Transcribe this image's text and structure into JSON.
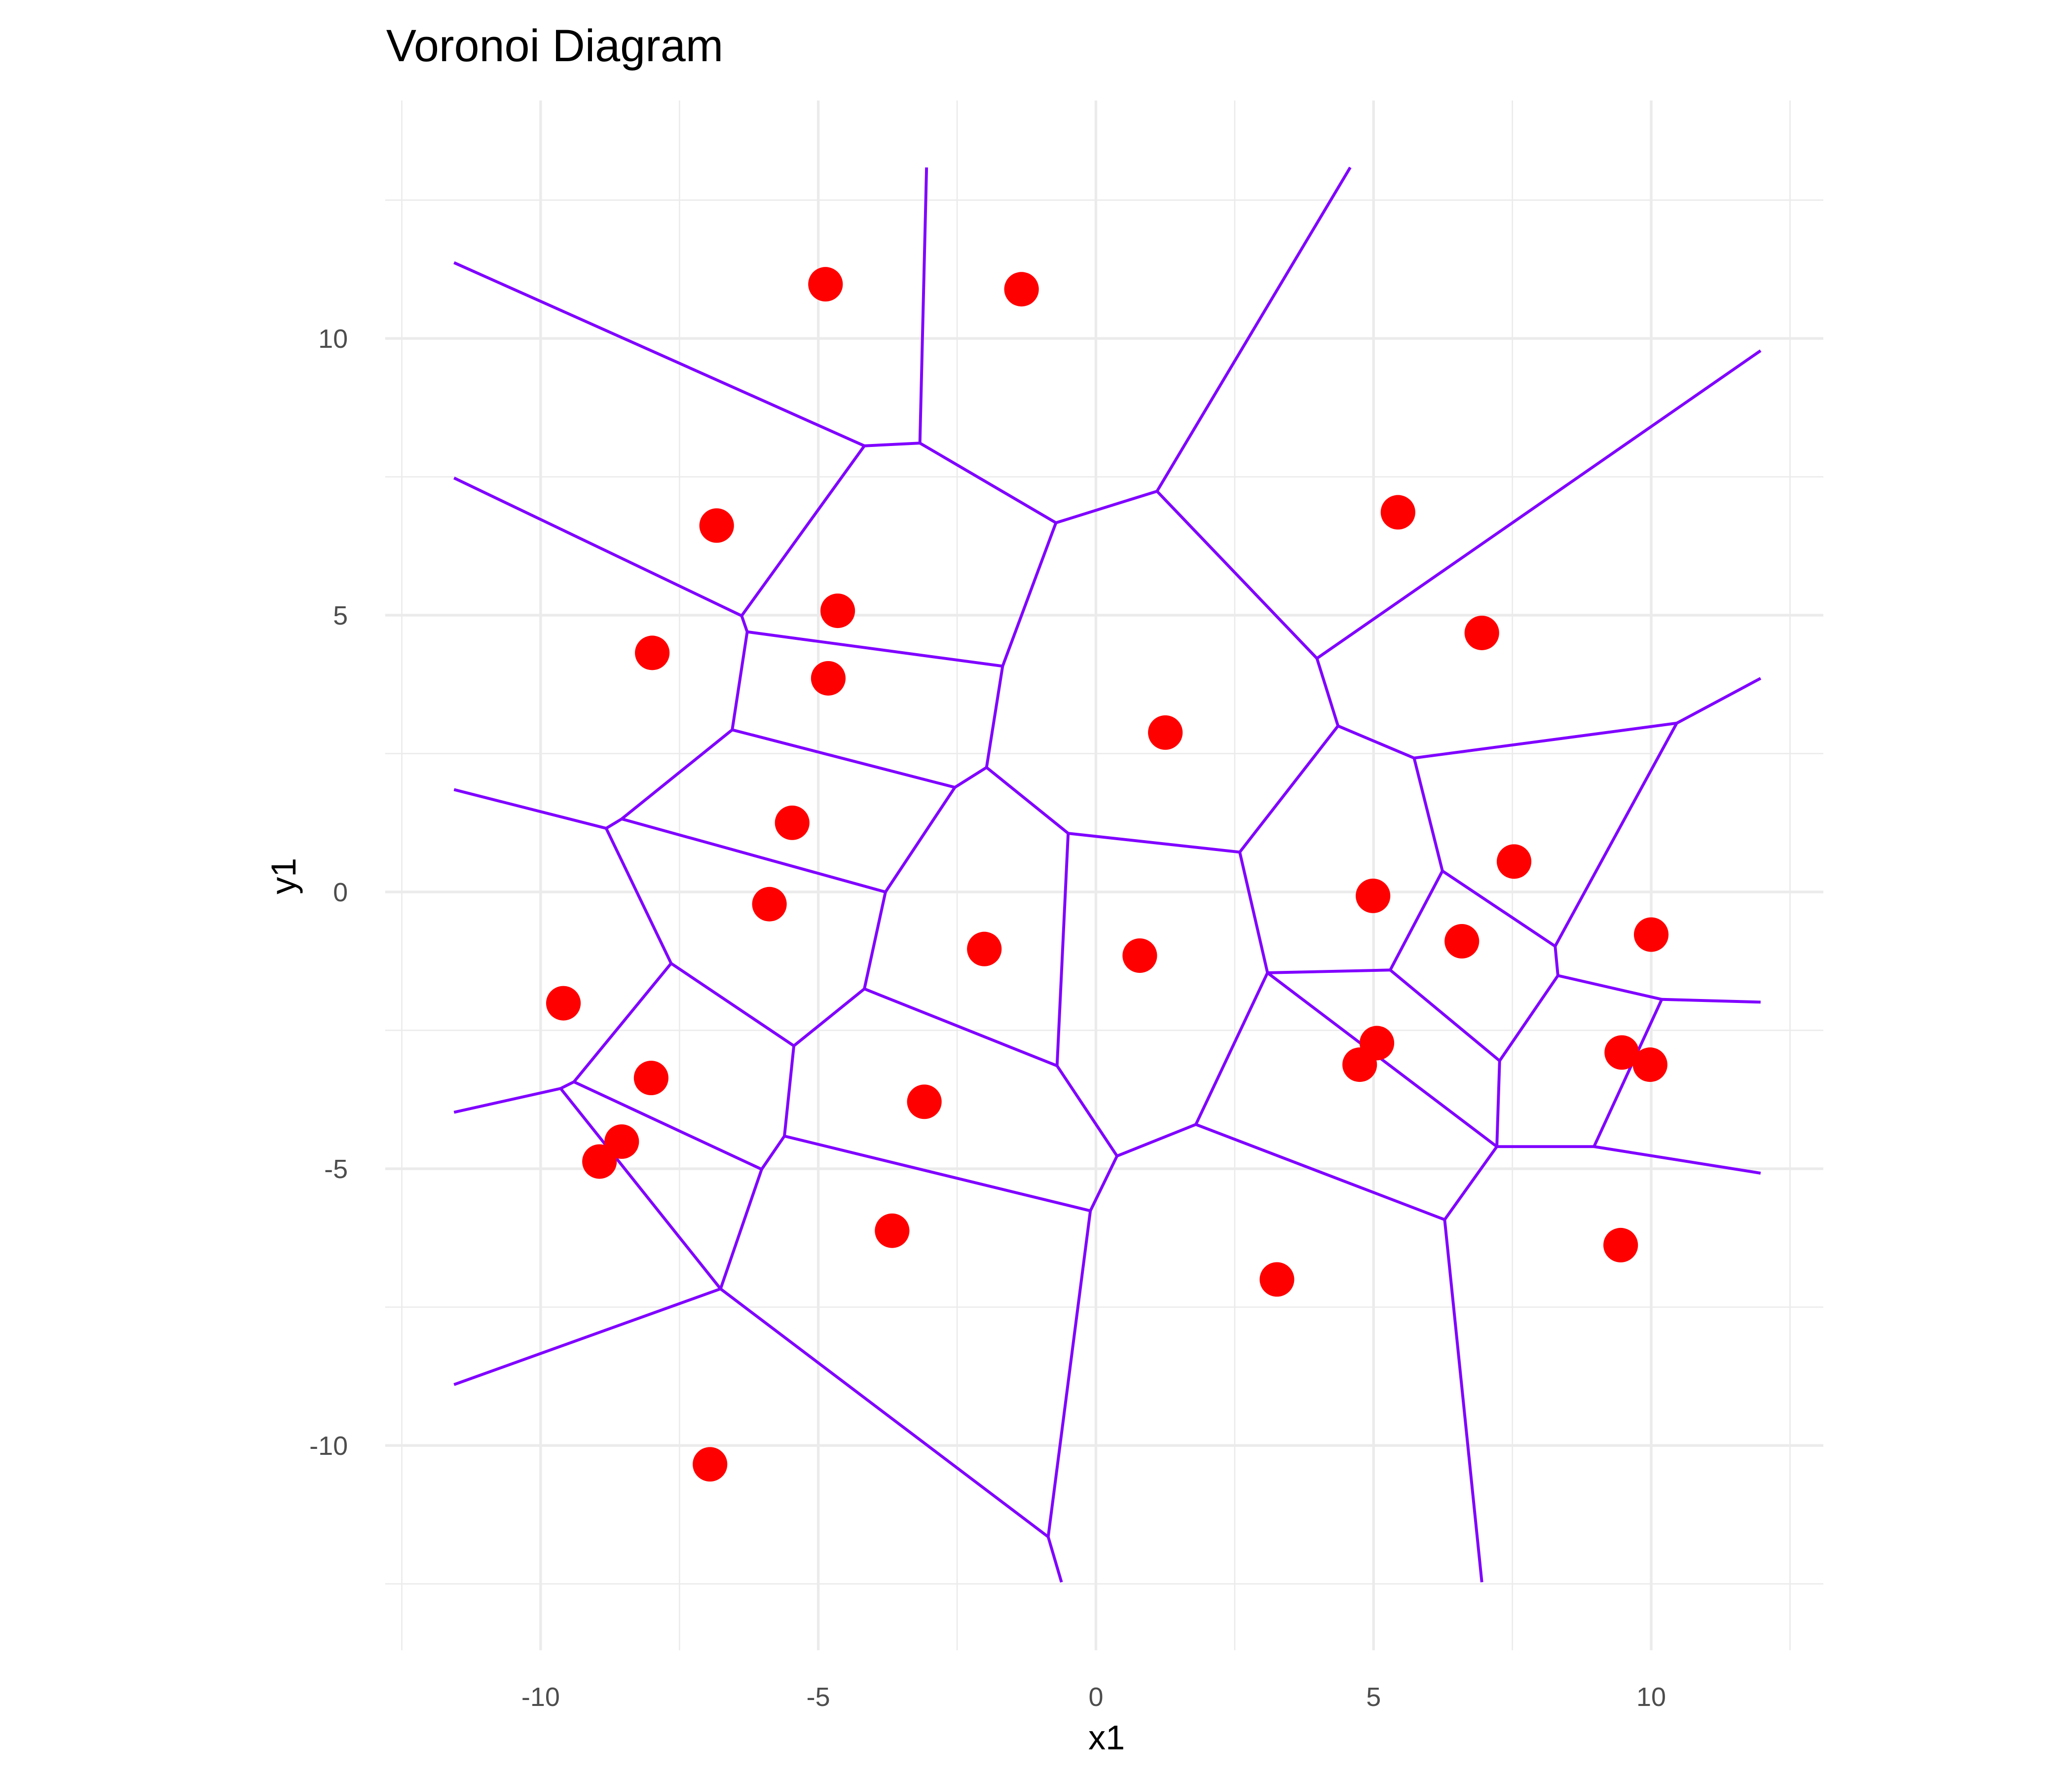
{
  "chart_data": {
    "type": "scatter",
    "title": "Voronoi Diagram",
    "xlabel": "x1",
    "ylabel": "y1",
    "xlim": [
      -12.8,
      13.1
    ],
    "ylim": [
      -13.7,
      14.3
    ],
    "x_ticks": [
      -10,
      -5,
      0,
      5,
      10
    ],
    "y_ticks": [
      -10,
      -5,
      0,
      5,
      10
    ],
    "x_tick_labels": [
      "-10",
      "-5",
      "0",
      "5",
      "10"
    ],
    "y_tick_labels": [
      "-10",
      "-5",
      "0",
      "5",
      "10"
    ],
    "grid": true,
    "point_color": "#FF0000",
    "edge_color": "#8000FF",
    "points": [
      [
        -4.87,
        10.98
      ],
      [
        -1.34,
        10.89
      ],
      [
        -6.83,
        6.62
      ],
      [
        -4.65,
        5.08
      ],
      [
        -7.99,
        4.32
      ],
      [
        -4.82,
        3.86
      ],
      [
        1.25,
        2.88
      ],
      [
        5.44,
        6.86
      ],
      [
        6.95,
        4.68
      ],
      [
        -5.47,
        1.25
      ],
      [
        -5.88,
        -0.22
      ],
      [
        7.53,
        0.55
      ],
      [
        4.99,
        -0.07
      ],
      [
        10.0,
        -0.77
      ],
      [
        6.59,
        -0.89
      ],
      [
        -2.01,
        -1.03
      ],
      [
        0.79,
        -1.15
      ],
      [
        -9.59,
        -2.01
      ],
      [
        -8.01,
        -3.36
      ],
      [
        -3.09,
        -3.79
      ],
      [
        5.06,
        -2.73
      ],
      [
        4.75,
        -3.12
      ],
      [
        9.47,
        -2.9
      ],
      [
        9.98,
        -3.12
      ],
      [
        -8.54,
        -4.51
      ],
      [
        -8.94,
        -4.87
      ],
      [
        -3.67,
        -6.12
      ],
      [
        3.26,
        -7.0
      ],
      [
        9.45,
        -6.38
      ],
      [
        -6.95,
        -10.34
      ]
    ],
    "voronoi_edges": [
      [
        [
          -11.56,
          11.37
        ],
        [
          -4.17,
          8.06
        ]
      ],
      [
        [
          -4.17,
          8.06
        ],
        [
          -3.17,
          8.11
        ]
      ],
      [
        [
          -3.17,
          8.11
        ],
        [
          -3.05,
          13.09
        ]
      ],
      [
        [
          -3.17,
          8.11
        ],
        [
          -0.72,
          6.67
        ]
      ],
      [
        [
          -0.72,
          6.67
        ],
        [
          1.1,
          7.24
        ]
      ],
      [
        [
          1.1,
          7.24
        ],
        [
          4.58,
          13.09
        ]
      ],
      [
        [
          1.1,
          7.24
        ],
        [
          3.98,
          4.22
        ]
      ],
      [
        [
          3.98,
          4.22
        ],
        [
          11.97,
          9.78
        ]
      ],
      [
        [
          -11.56,
          7.48
        ],
        [
          -6.38,
          4.99
        ]
      ],
      [
        [
          -4.17,
          8.06
        ],
        [
          -6.38,
          4.99
        ]
      ],
      [
        [
          -6.38,
          4.99
        ],
        [
          -6.28,
          4.7
        ]
      ],
      [
        [
          -6.28,
          4.7
        ],
        [
          -1.68,
          4.08
        ]
      ],
      [
        [
          -1.68,
          4.08
        ],
        [
          -0.72,
          6.67
        ]
      ],
      [
        [
          -6.28,
          4.7
        ],
        [
          -6.55,
          2.93
        ]
      ],
      [
        [
          -6.55,
          2.93
        ],
        [
          -2.54,
          1.89
        ]
      ],
      [
        [
          -2.54,
          1.89
        ],
        [
          -1.97,
          2.25
        ]
      ],
      [
        [
          -1.97,
          2.25
        ],
        [
          -1.68,
          4.08
        ]
      ],
      [
        [
          -1.97,
          2.25
        ],
        [
          -0.5,
          1.06
        ]
      ],
      [
        [
          -0.5,
          1.06
        ],
        [
          2.59,
          0.72
        ]
      ],
      [
        [
          2.59,
          0.72
        ],
        [
          4.36,
          3.0
        ]
      ],
      [
        [
          4.36,
          3.0
        ],
        [
          3.98,
          4.22
        ]
      ],
      [
        [
          4.36,
          3.0
        ],
        [
          5.73,
          2.42
        ]
      ],
      [
        [
          5.73,
          2.42
        ],
        [
          10.46,
          3.05
        ]
      ],
      [
        [
          10.46,
          3.05
        ],
        [
          11.97,
          3.86
        ]
      ],
      [
        [
          5.73,
          2.42
        ],
        [
          6.24,
          0.38
        ]
      ],
      [
        [
          6.24,
          0.38
        ],
        [
          8.27,
          -0.98
        ]
      ],
      [
        [
          8.27,
          -0.98
        ],
        [
          10.46,
          3.05
        ]
      ],
      [
        [
          8.27,
          -0.98
        ],
        [
          8.32,
          -1.51
        ]
      ],
      [
        [
          8.32,
          -1.51
        ],
        [
          10.19,
          -1.94
        ]
      ],
      [
        [
          10.19,
          -1.94
        ],
        [
          11.97,
          -1.99
        ]
      ],
      [
        [
          10.19,
          -1.94
        ],
        [
          8.97,
          -4.6
        ]
      ],
      [
        [
          8.97,
          -4.6
        ],
        [
          11.97,
          -5.08
        ]
      ],
      [
        [
          8.97,
          -4.6
        ],
        [
          7.22,
          -4.6
        ]
      ],
      [
        [
          7.22,
          -4.6
        ],
        [
          7.27,
          -3.05
        ]
      ],
      [
        [
          7.27,
          -3.05
        ],
        [
          8.32,
          -1.51
        ]
      ],
      [
        [
          7.27,
          -3.05
        ],
        [
          5.3,
          -1.41
        ]
      ],
      [
        [
          5.3,
          -1.41
        ],
        [
          6.24,
          0.38
        ]
      ],
      [
        [
          5.3,
          -1.41
        ],
        [
          3.09,
          -1.46
        ]
      ],
      [
        [
          3.09,
          -1.46
        ],
        [
          2.59,
          0.72
        ]
      ],
      [
        [
          3.09,
          -1.46
        ],
        [
          7.22,
          -4.6
        ]
      ],
      [
        [
          7.22,
          -4.6
        ],
        [
          6.28,
          -5.92
        ]
      ],
      [
        [
          6.28,
          -5.92
        ],
        [
          1.8,
          -4.2
        ]
      ],
      [
        [
          6.28,
          -5.92
        ],
        [
          6.95,
          -12.47
        ]
      ],
      [
        [
          1.8,
          -4.2
        ],
        [
          3.09,
          -1.46
        ]
      ],
      [
        [
          1.8,
          -4.2
        ],
        [
          0.38,
          -4.77
        ]
      ],
      [
        [
          0.38,
          -4.77
        ],
        [
          -0.1,
          -5.76
        ]
      ],
      [
        [
          0.38,
          -4.77
        ],
        [
          -0.7,
          -3.14
        ]
      ],
      [
        [
          -0.7,
          -3.14
        ],
        [
          -0.5,
          1.06
        ]
      ],
      [
        [
          -0.7,
          -3.14
        ],
        [
          -4.17,
          -1.75
        ]
      ],
      [
        [
          -4.17,
          -1.75
        ],
        [
          -3.79,
          0.0
        ]
      ],
      [
        [
          -3.79,
          0.0
        ],
        [
          -2.54,
          1.89
        ]
      ],
      [
        [
          -3.79,
          0.0
        ],
        [
          -8.54,
          1.32
        ]
      ],
      [
        [
          -8.54,
          1.32
        ],
        [
          -6.55,
          2.93
        ]
      ],
      [
        [
          -8.54,
          1.32
        ],
        [
          -8.82,
          1.15
        ]
      ],
      [
        [
          -8.82,
          1.15
        ],
        [
          -11.56,
          1.85
        ]
      ],
      [
        [
          -8.82,
          1.15
        ],
        [
          -7.65,
          -1.29
        ]
      ],
      [
        [
          -7.65,
          -1.29
        ],
        [
          -5.44,
          -2.78
        ]
      ],
      [
        [
          -5.44,
          -2.78
        ],
        [
          -4.17,
          -1.75
        ]
      ],
      [
        [
          -7.65,
          -1.29
        ],
        [
          -9.4,
          -3.43
        ]
      ],
      [
        [
          -9.4,
          -3.43
        ],
        [
          -9.64,
          -3.55
        ]
      ],
      [
        [
          -9.64,
          -3.55
        ],
        [
          -11.56,
          -3.98
        ]
      ],
      [
        [
          -9.4,
          -3.43
        ],
        [
          -6.02,
          -5.01
        ]
      ],
      [
        [
          -6.02,
          -5.01
        ],
        [
          -5.61,
          -4.41
        ]
      ],
      [
        [
          -5.61,
          -4.41
        ],
        [
          -5.44,
          -2.78
        ]
      ],
      [
        [
          -5.61,
          -4.41
        ],
        [
          -0.1,
          -5.76
        ]
      ],
      [
        [
          -6.02,
          -5.01
        ],
        [
          -6.76,
          -7.17
        ]
      ],
      [
        [
          -9.64,
          -3.55
        ],
        [
          -6.76,
          -7.17
        ]
      ],
      [
        [
          -6.76,
          -7.17
        ],
        [
          -11.56,
          -8.9
        ]
      ],
      [
        [
          -6.76,
          -7.17
        ],
        [
          -0.86,
          -11.65
        ]
      ],
      [
        [
          -0.86,
          -11.65
        ],
        [
          -0.1,
          -5.76
        ]
      ],
      [
        [
          -0.86,
          -11.65
        ],
        [
          -0.62,
          -12.47
        ]
      ]
    ]
  }
}
